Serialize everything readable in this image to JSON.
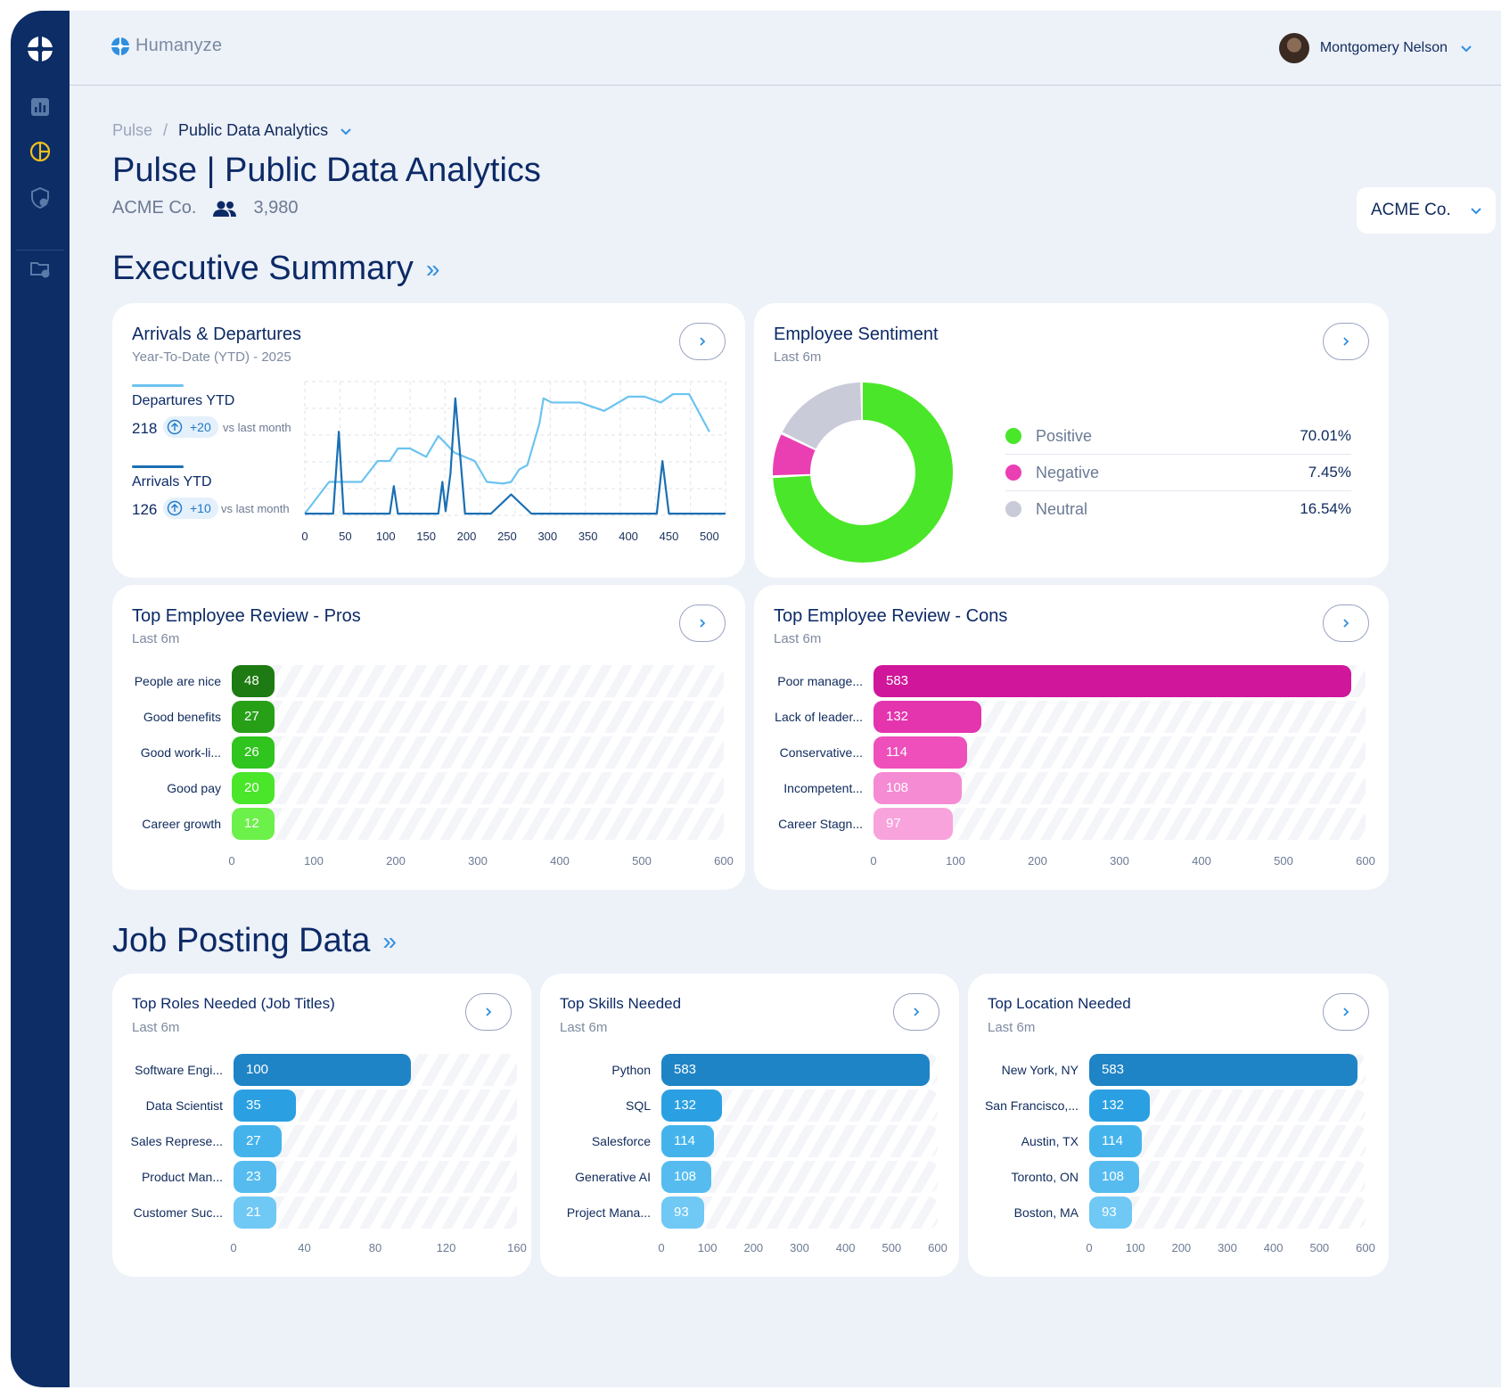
{
  "brand": {
    "name": "Humanyze"
  },
  "user": {
    "name": "Montgomery Nelson"
  },
  "breadcrumb": {
    "root": "Pulse",
    "sep": "/",
    "current": "Public Data Analytics"
  },
  "page": {
    "title": "Pulse | Public Data Analytics",
    "company": "ACME Co.",
    "headcount": "3,980",
    "company_select": "ACME Co."
  },
  "sections": {
    "executive": "Executive Summary",
    "jobs": "Job Posting Data",
    "chevrons": "»"
  },
  "colors": {
    "sidebar": "#0c2d66",
    "accent": "#2f8fe0",
    "positive": "#4ae629",
    "negative": "#ea3fb3",
    "neutral": "#c9cbd9",
    "departures": "#6cc3f0",
    "arrivals": "#1b6fb3"
  },
  "arrivals": {
    "title": "Arrivals & Departures",
    "subtitle": "Year-To-Date (YTD) - 2025",
    "departures": {
      "label": "Departures YTD",
      "value": "218",
      "delta": "+20",
      "vs": "vs last month"
    },
    "arrivals": {
      "label": "Arrivals YTD",
      "value": "126",
      "delta": "+10",
      "vs": "vs last month"
    }
  },
  "sentiment": {
    "title": "Employee Sentiment",
    "subtitle": "Last 6m",
    "items": [
      {
        "name": "Positive",
        "value": "70.01%"
      },
      {
        "name": "Negative",
        "value": "7.45%"
      },
      {
        "name": "Neutral",
        "value": "16.54%"
      }
    ]
  },
  "pros": {
    "title": "Top Employee Review - Pros",
    "subtitle": "Last 6m"
  },
  "cons": {
    "title": "Top Employee Review - Cons",
    "subtitle": "Last 6m"
  },
  "roles": {
    "title": "Top Roles Needed (Job Titles)",
    "subtitle": "Last 6m"
  },
  "skills": {
    "title": "Top Skills Needed",
    "subtitle": "Last 6m"
  },
  "locations": {
    "title": "Top Location Needed",
    "subtitle": "Last 6m"
  },
  "chart_data": [
    {
      "id": "arrivals_departures",
      "type": "line",
      "xlim": [
        0,
        520
      ],
      "ylim": [
        0,
        160
      ],
      "grid": true,
      "x_ticks": [
        0,
        50,
        100,
        150,
        200,
        250,
        300,
        350,
        400,
        450,
        500
      ],
      "series": [
        {
          "name": "Departures YTD",
          "points": [
            [
              0,
              2
            ],
            [
              30,
              40
            ],
            [
              70,
              40
            ],
            [
              90,
              65
            ],
            [
              105,
              65
            ],
            [
              115,
              80
            ],
            [
              130,
              80
            ],
            [
              150,
              70
            ],
            [
              165,
              95
            ],
            [
              185,
              75
            ],
            [
              210,
              65
            ],
            [
              225,
              40
            ],
            [
              245,
              38
            ],
            [
              255,
              40
            ],
            [
              265,
              55
            ],
            [
              275,
              60
            ],
            [
              290,
              110
            ],
            [
              295,
              140
            ],
            [
              305,
              135
            ],
            [
              340,
              135
            ],
            [
              370,
              125
            ],
            [
              400,
              142
            ],
            [
              420,
              142
            ],
            [
              440,
              135
            ],
            [
              455,
              145
            ],
            [
              475,
              145
            ],
            [
              500,
              100
            ]
          ]
        },
        {
          "name": "Arrivals YTD",
          "points": [
            [
              0,
              2
            ],
            [
              35,
              2
            ],
            [
              42,
              100
            ],
            [
              48,
              2
            ],
            [
              105,
              2
            ],
            [
              110,
              35
            ],
            [
              115,
              2
            ],
            [
              165,
              2
            ],
            [
              170,
              40
            ],
            [
              174,
              5
            ],
            [
              180,
              50
            ],
            [
              186,
              140
            ],
            [
              193,
              60
            ],
            [
              198,
              2
            ],
            [
              230,
              2
            ],
            [
              255,
              25
            ],
            [
              280,
              2
            ],
            [
              435,
              2
            ],
            [
              442,
              65
            ],
            [
              450,
              2
            ],
            [
              520,
              2
            ]
          ]
        }
      ]
    },
    {
      "id": "employee_sentiment",
      "type": "pie",
      "labels": [
        "Positive",
        "Negative",
        "Neutral"
      ],
      "values": [
        70.01,
        7.45,
        16.54
      ]
    },
    {
      "id": "pros",
      "type": "bar",
      "categories": [
        "People are nice",
        "Good benefits",
        "Good work-li...",
        "Good pay",
        "Career growth"
      ],
      "values": [
        48,
        27,
        26,
        20,
        12
      ],
      "tick_values": [
        0,
        100,
        200,
        300,
        400,
        500,
        600
      ]
    },
    {
      "id": "cons",
      "type": "bar",
      "categories": [
        "Poor manage...",
        "Lack of leader...",
        "Conservative...",
        "Incompetent...",
        "Career Stagn..."
      ],
      "values": [
        583,
        132,
        114,
        108,
        97
      ],
      "tick_values": [
        0,
        100,
        200,
        300,
        400,
        500,
        600
      ]
    },
    {
      "id": "roles",
      "type": "bar",
      "categories": [
        "Software Engi...",
        "Data Scientist",
        "Sales Represe...",
        "Product Man...",
        "Customer Suc..."
      ],
      "values": [
        100,
        35,
        27,
        23,
        21
      ],
      "tick_values": [
        0,
        40,
        80,
        120,
        160
      ]
    },
    {
      "id": "skills",
      "type": "bar",
      "categories": [
        "Python",
        "SQL",
        "Salesforce",
        "Generative AI",
        "Project Mana..."
      ],
      "values": [
        583,
        132,
        114,
        108,
        93
      ],
      "tick_values": [
        0,
        100,
        200,
        300,
        400,
        500,
        600
      ]
    },
    {
      "id": "locations",
      "type": "bar",
      "categories": [
        "New York, NY",
        "San Francisco,...",
        "Austin, TX",
        "Toronto, ON",
        "Boston, MA"
      ],
      "values": [
        583,
        132,
        114,
        108,
        93
      ],
      "tick_values": [
        0,
        100,
        200,
        300,
        400,
        500,
        600
      ]
    }
  ]
}
